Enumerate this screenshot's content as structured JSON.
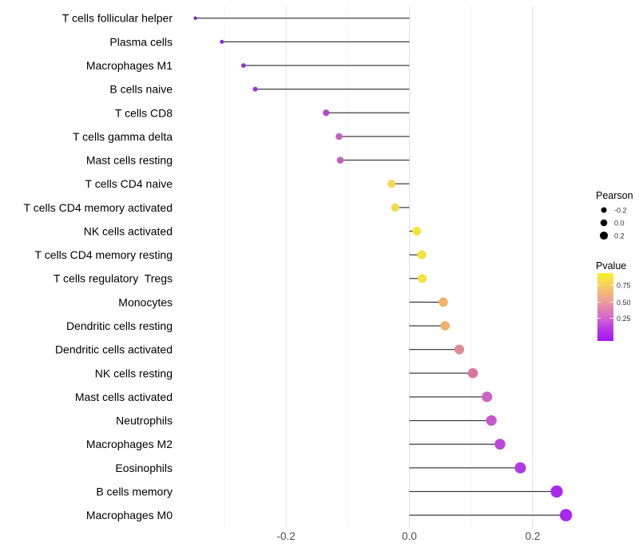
{
  "chart_data": {
    "type": "lollipop",
    "orientation": "horizontal",
    "title": "",
    "xlabel": "",
    "ylabel": "",
    "xlim": [
      -0.376,
      0.286
    ],
    "grid": true,
    "x_ticks": [
      {
        "value": -0.2,
        "label": "-0.2"
      },
      {
        "value": 0.0,
        "label": "0.0"
      },
      {
        "value": 0.2,
        "label": "0.2"
      }
    ],
    "x_minor_ticks": [
      -0.3,
      -0.1,
      0.1
    ],
    "points": [
      {
        "label": "T cells follicular helper",
        "pearson": -0.347,
        "color": "#7222B6"
      },
      {
        "label": "Plasma cells",
        "pearson": -0.304,
        "color": "#8A2BD9"
      },
      {
        "label": "Macrophages M1",
        "pearson": -0.269,
        "color": "#9330DB"
      },
      {
        "label": "B cells naive",
        "pearson": -0.25,
        "color": "#9834D9"
      },
      {
        "label": "T cells CD8",
        "pearson": -0.135,
        "color": "#B04CC9"
      },
      {
        "label": "T cells gamma delta",
        "pearson": -0.114,
        "color": "#C160BE"
      },
      {
        "label": "Mast cells resting",
        "pearson": -0.112,
        "color": "#C260BF"
      },
      {
        "label": "T cells CD4 naive",
        "pearson": -0.029,
        "color": "#EFD852"
      },
      {
        "label": "T cells CD4 memory activated",
        "pearson": -0.023,
        "color": "#F1DB4C"
      },
      {
        "label": "NK cells activated",
        "pearson": 0.012,
        "color": "#F5E437"
      },
      {
        "label": "T cells CD4 memory resting",
        "pearson": 0.02,
        "color": "#F4E23C"
      },
      {
        "label": "T cells regulatory  Tregs",
        "pearson": 0.021,
        "color": "#F4E23C"
      },
      {
        "label": "Monocytes",
        "pearson": 0.055,
        "color": "#F1B269"
      },
      {
        "label": "Dendritic cells resting",
        "pearson": 0.058,
        "color": "#F0B16C"
      },
      {
        "label": "Dendritic cells activated",
        "pearson": 0.081,
        "color": "#DD8D91"
      },
      {
        "label": "NK cells resting",
        "pearson": 0.103,
        "color": "#D8759E"
      },
      {
        "label": "Mast cells activated",
        "pearson": 0.126,
        "color": "#CB62C6"
      },
      {
        "label": "Neutrophils",
        "pearson": 0.133,
        "color": "#C658CE"
      },
      {
        "label": "Macrophages M2",
        "pearson": 0.147,
        "color": "#BC47D9"
      },
      {
        "label": "Eosinophils",
        "pearson": 0.18,
        "color": "#B13AE3"
      },
      {
        "label": "B cells memory",
        "pearson": 0.239,
        "color": "#A929EC"
      },
      {
        "label": "Macrophages M0",
        "pearson": 0.254,
        "color": "#A727EE"
      }
    ],
    "legend": {
      "size_legend": {
        "title": "Pearson",
        "entries": [
          {
            "label": "-0.2",
            "value": -0.2
          },
          {
            "label": "0.0",
            "value": 0.0
          },
          {
            "label": "0.2",
            "value": 0.2
          }
        ],
        "dot_color": "#000000"
      },
      "color_legend": {
        "title": "Pvalue",
        "tick_labels": [
          "0.75",
          "0.50",
          "0.25"
        ],
        "gradient_stops": [
          {
            "offset": 0.0,
            "color": "#FCEE27"
          },
          {
            "offset": 0.12,
            "color": "#F9DB4C"
          },
          {
            "offset": 0.28,
            "color": "#F4B878"
          },
          {
            "offset": 0.42,
            "color": "#EC9C99"
          },
          {
            "offset": 0.55,
            "color": "#DF7FB4"
          },
          {
            "offset": 0.68,
            "color": "#D05FD0"
          },
          {
            "offset": 0.8,
            "color": "#BD3FE2"
          },
          {
            "offset": 0.92,
            "color": "#AC23ED"
          },
          {
            "offset": 1.0,
            "color": "#A518F0"
          }
        ]
      }
    },
    "colors": {
      "background": "#FFFFFF",
      "stem": "#3E3E3E",
      "grid_major": "#E4E4E4",
      "grid_minor": "#F0F0F0",
      "axis_text": "#4D4D4D",
      "category_text": "#000000",
      "legend_text": "#333333",
      "legend_title": "#000000"
    }
  }
}
